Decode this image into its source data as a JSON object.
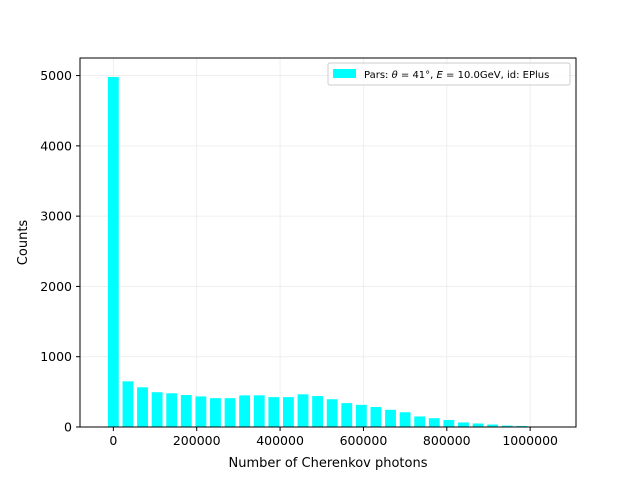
{
  "chart_data": {
    "type": "bar",
    "xlabel": "Number of Cherenkov photons",
    "ylabel": "Counts",
    "xlim": [
      -80000,
      1110000
    ],
    "ylim": [
      0,
      5250
    ],
    "grid": true,
    "legend_position": "top-right",
    "bar_color": "#00ffff",
    "x_ticks": [
      0,
      200000,
      400000,
      600000,
      800000,
      1000000
    ],
    "x_tick_labels": [
      "0",
      "200000",
      "400000",
      "600000",
      "800000",
      "1000000"
    ],
    "y_ticks": [
      0,
      1000,
      2000,
      3000,
      4000,
      5000
    ],
    "y_tick_labels": [
      "0",
      "1000",
      "2000",
      "3000",
      "4000",
      "5000"
    ],
    "bin_width": 35000,
    "bar_width_data": 26000,
    "x": [
      0,
      35000,
      70000,
      105000,
      140000,
      175000,
      210000,
      245000,
      280000,
      315000,
      350000,
      385000,
      420000,
      455000,
      490000,
      525000,
      560000,
      595000,
      630000,
      665000,
      700000,
      735000,
      770000,
      805000,
      840000,
      875000,
      910000,
      945000,
      980000,
      1015000,
      1050000
    ],
    "series": [
      {
        "name": "Pars: θ = 41°, E = 10.0GeV, id: EPlus",
        "values": [
          4980,
          650,
          565,
          495,
          480,
          455,
          435,
          410,
          410,
          450,
          450,
          425,
          425,
          465,
          440,
          395,
          340,
          315,
          285,
          245,
          210,
          150,
          125,
          100,
          65,
          50,
          35,
          20,
          15,
          5,
          0
        ]
      }
    ],
    "legend": {
      "prefix": "Pars: ",
      "theta_symbol": "θ",
      "theta_value": " = 41°, ",
      "energy_symbol": "E",
      "energy_value": " = 10.0GeV, id: EPlus"
    }
  }
}
